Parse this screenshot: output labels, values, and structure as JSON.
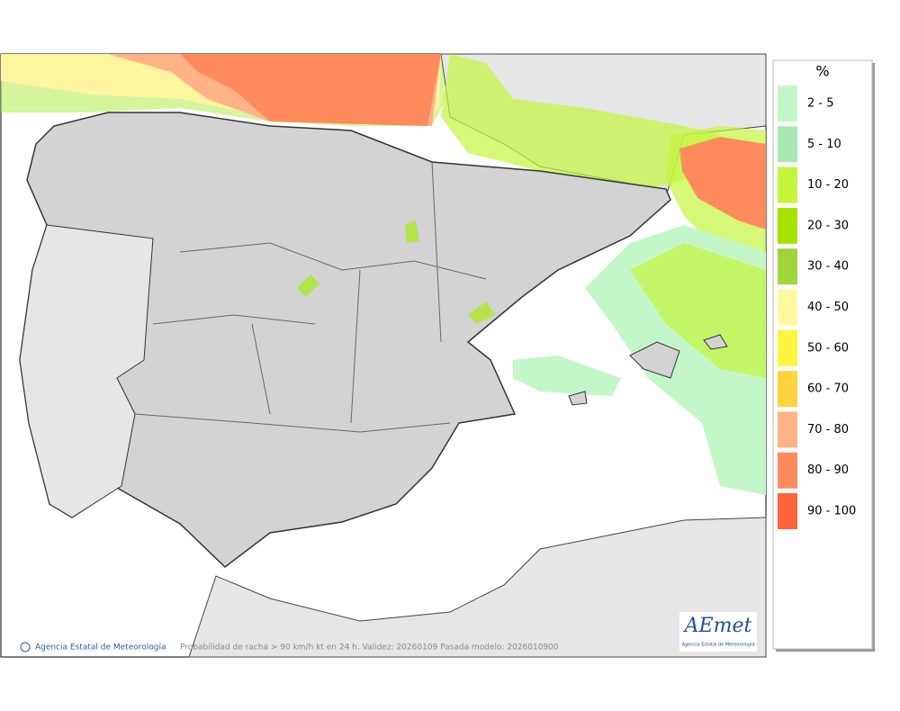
{
  "legend": {
    "title": "%",
    "entries": [
      {
        "label": "2 - 5",
        "color": "#c4f7c8"
      },
      {
        "label": "5 - 10",
        "color": "#a9e8b3"
      },
      {
        "label": "10 - 20",
        "color": "#c3f53c"
      },
      {
        "label": "20 - 30",
        "color": "#a6e400"
      },
      {
        "label": "30 - 40",
        "color": "#9ed53a"
      },
      {
        "label": "40 - 50",
        "color": "#fffaa2"
      },
      {
        "label": "50 - 60",
        "color": "#fff440"
      },
      {
        "label": "60 - 70",
        "color": "#ffd33e"
      },
      {
        "label": "70 - 80",
        "color": "#ffb386"
      },
      {
        "label": "80 - 90",
        "color": "#ff8b5c"
      },
      {
        "label": "90 - 100",
        "color": "#ff643a"
      }
    ]
  },
  "footer": {
    "agency": "Agencia Estatal de Meteorología",
    "caption": "Probabilidad de racha > 90 km/h kt en 24 h. Validez: 20260109 Pasada modelo: 2026010900"
  },
  "logo": {
    "name": "AEmet",
    "subtitle": "Agencia Estatal de Meteorología"
  }
}
